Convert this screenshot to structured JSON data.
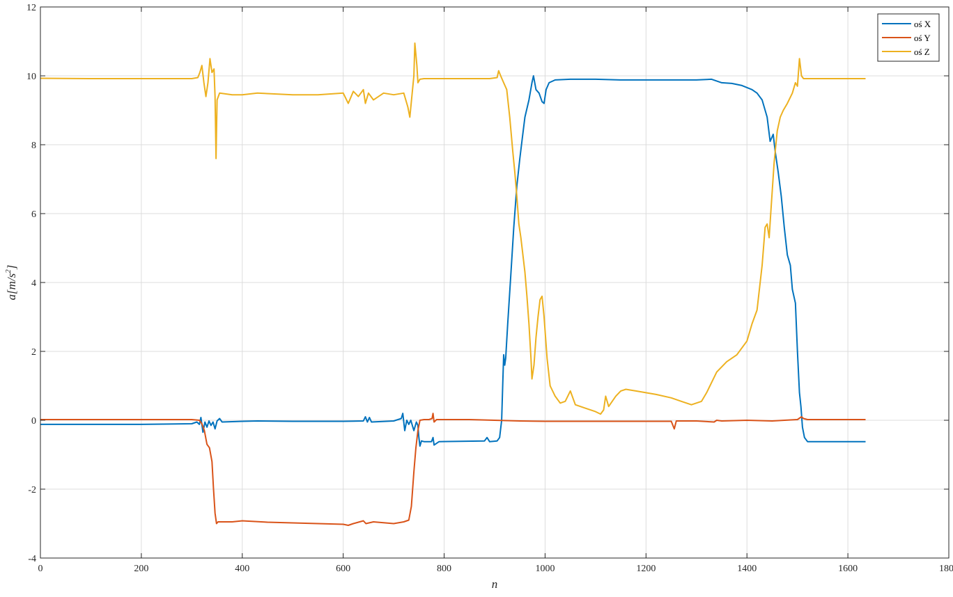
{
  "chart_data": {
    "type": "line",
    "title": "",
    "xlabel": "n",
    "ylabel_main": "a",
    "ylabel_unit": "[m/s",
    "ylabel_exp": "2",
    "ylabel_close": "]",
    "xlim": [
      0,
      1800
    ],
    "ylim": [
      -4,
      12
    ],
    "xticks": [
      0,
      200,
      400,
      600,
      800,
      1000,
      1200,
      1400,
      1600,
      1800
    ],
    "yticks": [
      -4,
      -2,
      0,
      2,
      4,
      6,
      8,
      10,
      12
    ],
    "grid": true,
    "legend_position": "top-right",
    "series": [
      {
        "name": "oś X",
        "color": "#0072BD",
        "points": [
          [
            0,
            -0.12
          ],
          [
            100,
            -0.12
          ],
          [
            200,
            -0.12
          ],
          [
            300,
            -0.1
          ],
          [
            310,
            -0.05
          ],
          [
            315,
            -0.12
          ],
          [
            318,
            0.08
          ],
          [
            322,
            -0.35
          ],
          [
            326,
            -0.05
          ],
          [
            330,
            -0.2
          ],
          [
            334,
            -0.02
          ],
          [
            338,
            -0.15
          ],
          [
            342,
            -0.05
          ],
          [
            346,
            -0.25
          ],
          [
            350,
            -0.02
          ],
          [
            355,
            0.05
          ],
          [
            360,
            -0.05
          ],
          [
            400,
            -0.03
          ],
          [
            430,
            -0.02
          ],
          [
            500,
            -0.03
          ],
          [
            600,
            -0.03
          ],
          [
            640,
            -0.02
          ],
          [
            644,
            0.1
          ],
          [
            648,
            -0.05
          ],
          [
            652,
            0.08
          ],
          [
            656,
            -0.05
          ],
          [
            700,
            -0.02
          ],
          [
            715,
            0.05
          ],
          [
            718,
            0.2
          ],
          [
            722,
            -0.3
          ],
          [
            726,
            0.0
          ],
          [
            730,
            -0.12
          ],
          [
            734,
            0.0
          ],
          [
            740,
            -0.3
          ],
          [
            745,
            -0.05
          ],
          [
            748,
            -0.15
          ],
          [
            750,
            -0.5
          ],
          [
            752,
            -0.75
          ],
          [
            755,
            -0.6
          ],
          [
            760,
            -0.62
          ],
          [
            775,
            -0.62
          ],
          [
            778,
            -0.5
          ],
          [
            780,
            -0.72
          ],
          [
            790,
            -0.62
          ],
          [
            880,
            -0.6
          ],
          [
            885,
            -0.5
          ],
          [
            890,
            -0.62
          ],
          [
            905,
            -0.6
          ],
          [
            910,
            -0.5
          ],
          [
            914,
            0.0
          ],
          [
            916,
            1.0
          ],
          [
            918,
            1.9
          ],
          [
            920,
            1.6
          ],
          [
            922,
            1.8
          ],
          [
            926,
            2.8
          ],
          [
            932,
            4.2
          ],
          [
            938,
            5.6
          ],
          [
            944,
            6.8
          ],
          [
            950,
            7.6
          ],
          [
            955,
            8.2
          ],
          [
            960,
            8.8
          ],
          [
            968,
            9.3
          ],
          [
            974,
            9.8
          ],
          [
            977,
            10.0
          ],
          [
            982,
            9.6
          ],
          [
            988,
            9.5
          ],
          [
            994,
            9.25
          ],
          [
            998,
            9.2
          ],
          [
            1002,
            9.6
          ],
          [
            1008,
            9.8
          ],
          [
            1020,
            9.88
          ],
          [
            1050,
            9.9
          ],
          [
            1100,
            9.9
          ],
          [
            1150,
            9.88
          ],
          [
            1200,
            9.88
          ],
          [
            1250,
            9.88
          ],
          [
            1300,
            9.88
          ],
          [
            1330,
            9.9
          ],
          [
            1350,
            9.8
          ],
          [
            1370,
            9.78
          ],
          [
            1390,
            9.72
          ],
          [
            1410,
            9.6
          ],
          [
            1420,
            9.5
          ],
          [
            1430,
            9.3
          ],
          [
            1440,
            8.8
          ],
          [
            1446,
            8.1
          ],
          [
            1452,
            8.3
          ],
          [
            1456,
            7.8
          ],
          [
            1462,
            7.2
          ],
          [
            1468,
            6.5
          ],
          [
            1474,
            5.6
          ],
          [
            1480,
            4.8
          ],
          [
            1486,
            4.5
          ],
          [
            1490,
            3.8
          ],
          [
            1496,
            3.4
          ],
          [
            1500,
            2.0
          ],
          [
            1504,
            0.8
          ],
          [
            1507,
            0.4
          ],
          [
            1510,
            -0.2
          ],
          [
            1514,
            -0.5
          ],
          [
            1520,
            -0.62
          ],
          [
            1560,
            -0.62
          ],
          [
            1600,
            -0.62
          ],
          [
            1635,
            -0.62
          ]
        ]
      },
      {
        "name": "oś Y",
        "color": "#D95319",
        "points": [
          [
            0,
            0.02
          ],
          [
            100,
            0.02
          ],
          [
            200,
            0.02
          ],
          [
            300,
            0.02
          ],
          [
            315,
            0.0
          ],
          [
            320,
            -0.1
          ],
          [
            325,
            -0.3
          ],
          [
            330,
            -0.7
          ],
          [
            335,
            -0.8
          ],
          [
            340,
            -1.2
          ],
          [
            343,
            -2.0
          ],
          [
            346,
            -2.7
          ],
          [
            349,
            -3.0
          ],
          [
            352,
            -2.95
          ],
          [
            360,
            -2.95
          ],
          [
            380,
            -2.95
          ],
          [
            400,
            -2.92
          ],
          [
            450,
            -2.96
          ],
          [
            500,
            -2.98
          ],
          [
            550,
            -3.0
          ],
          [
            600,
            -3.02
          ],
          [
            610,
            -3.05
          ],
          [
            620,
            -3.0
          ],
          [
            640,
            -2.92
          ],
          [
            645,
            -3.0
          ],
          [
            660,
            -2.95
          ],
          [
            700,
            -3.0
          ],
          [
            720,
            -2.95
          ],
          [
            730,
            -2.9
          ],
          [
            735,
            -2.5
          ],
          [
            740,
            -1.5
          ],
          [
            744,
            -0.8
          ],
          [
            748,
            -0.3
          ],
          [
            752,
            0.0
          ],
          [
            760,
            0.02
          ],
          [
            770,
            0.02
          ],
          [
            776,
            0.05
          ],
          [
            778,
            0.2
          ],
          [
            780,
            -0.05
          ],
          [
            785,
            0.02
          ],
          [
            850,
            0.02
          ],
          [
            900,
            0.0
          ],
          [
            950,
            -0.02
          ],
          [
            1000,
            -0.03
          ],
          [
            1050,
            -0.03
          ],
          [
            1100,
            -0.03
          ],
          [
            1150,
            -0.03
          ],
          [
            1200,
            -0.03
          ],
          [
            1250,
            -0.03
          ],
          [
            1256,
            -0.25
          ],
          [
            1260,
            -0.02
          ],
          [
            1300,
            -0.02
          ],
          [
            1335,
            -0.05
          ],
          [
            1340,
            0.0
          ],
          [
            1350,
            -0.02
          ],
          [
            1400,
            0.0
          ],
          [
            1450,
            -0.02
          ],
          [
            1500,
            0.02
          ],
          [
            1508,
            0.1
          ],
          [
            1512,
            0.05
          ],
          [
            1520,
            0.02
          ],
          [
            1600,
            0.02
          ],
          [
            1635,
            0.02
          ]
        ]
      },
      {
        "name": "oś Z",
        "color": "#EDB120",
        "points": [
          [
            0,
            9.93
          ],
          [
            100,
            9.92
          ],
          [
            200,
            9.92
          ],
          [
            300,
            9.92
          ],
          [
            312,
            9.95
          ],
          [
            316,
            10.1
          ],
          [
            320,
            10.3
          ],
          [
            324,
            9.8
          ],
          [
            328,
            9.4
          ],
          [
            332,
            9.8
          ],
          [
            336,
            10.5
          ],
          [
            340,
            10.1
          ],
          [
            344,
            10.2
          ],
          [
            346,
            9.4
          ],
          [
            348,
            7.6
          ],
          [
            350,
            9.3
          ],
          [
            355,
            9.5
          ],
          [
            380,
            9.45
          ],
          [
            400,
            9.45
          ],
          [
            430,
            9.5
          ],
          [
            500,
            9.45
          ],
          [
            550,
            9.45
          ],
          [
            600,
            9.5
          ],
          [
            610,
            9.2
          ],
          [
            620,
            9.55
          ],
          [
            630,
            9.4
          ],
          [
            640,
            9.6
          ],
          [
            644,
            9.2
          ],
          [
            650,
            9.5
          ],
          [
            660,
            9.3
          ],
          [
            680,
            9.5
          ],
          [
            700,
            9.45
          ],
          [
            720,
            9.5
          ],
          [
            728,
            9.1
          ],
          [
            732,
            8.8
          ],
          [
            736,
            9.4
          ],
          [
            740,
            10.0
          ],
          [
            742,
            10.95
          ],
          [
            746,
            10.3
          ],
          [
            748,
            9.8
          ],
          [
            752,
            9.9
          ],
          [
            760,
            9.92
          ],
          [
            800,
            9.92
          ],
          [
            850,
            9.92
          ],
          [
            890,
            9.92
          ],
          [
            905,
            9.95
          ],
          [
            908,
            10.15
          ],
          [
            912,
            10.0
          ],
          [
            918,
            9.8
          ],
          [
            924,
            9.6
          ],
          [
            930,
            8.8
          ],
          [
            936,
            7.8
          ],
          [
            940,
            7.2
          ],
          [
            944,
            6.5
          ],
          [
            948,
            5.7
          ],
          [
            952,
            5.3
          ],
          [
            956,
            4.8
          ],
          [
            960,
            4.3
          ],
          [
            964,
            3.6
          ],
          [
            968,
            2.8
          ],
          [
            972,
            1.8
          ],
          [
            974,
            1.2
          ],
          [
            978,
            1.6
          ],
          [
            982,
            2.4
          ],
          [
            986,
            3.0
          ],
          [
            990,
            3.5
          ],
          [
            994,
            3.6
          ],
          [
            998,
            3.0
          ],
          [
            1004,
            1.8
          ],
          [
            1010,
            1.0
          ],
          [
            1020,
            0.7
          ],
          [
            1030,
            0.5
          ],
          [
            1040,
            0.55
          ],
          [
            1050,
            0.85
          ],
          [
            1060,
            0.45
          ],
          [
            1080,
            0.35
          ],
          [
            1100,
            0.25
          ],
          [
            1110,
            0.18
          ],
          [
            1116,
            0.3
          ],
          [
            1120,
            0.7
          ],
          [
            1126,
            0.4
          ],
          [
            1140,
            0.7
          ],
          [
            1150,
            0.85
          ],
          [
            1160,
            0.9
          ],
          [
            1180,
            0.85
          ],
          [
            1200,
            0.8
          ],
          [
            1220,
            0.75
          ],
          [
            1250,
            0.65
          ],
          [
            1270,
            0.55
          ],
          [
            1290,
            0.45
          ],
          [
            1310,
            0.55
          ],
          [
            1320,
            0.8
          ],
          [
            1340,
            1.4
          ],
          [
            1360,
            1.7
          ],
          [
            1380,
            1.9
          ],
          [
            1400,
            2.3
          ],
          [
            1410,
            2.8
          ],
          [
            1420,
            3.2
          ],
          [
            1430,
            4.5
          ],
          [
            1436,
            5.6
          ],
          [
            1440,
            5.7
          ],
          [
            1444,
            5.3
          ],
          [
            1448,
            6.2
          ],
          [
            1454,
            7.5
          ],
          [
            1460,
            8.4
          ],
          [
            1466,
            8.8
          ],
          [
            1472,
            9.0
          ],
          [
            1480,
            9.2
          ],
          [
            1490,
            9.5
          ],
          [
            1496,
            9.8
          ],
          [
            1500,
            9.7
          ],
          [
            1504,
            10.5
          ],
          [
            1508,
            10.0
          ],
          [
            1512,
            9.92
          ],
          [
            1550,
            9.92
          ],
          [
            1600,
            9.92
          ],
          [
            1635,
            9.92
          ]
        ]
      }
    ]
  }
}
